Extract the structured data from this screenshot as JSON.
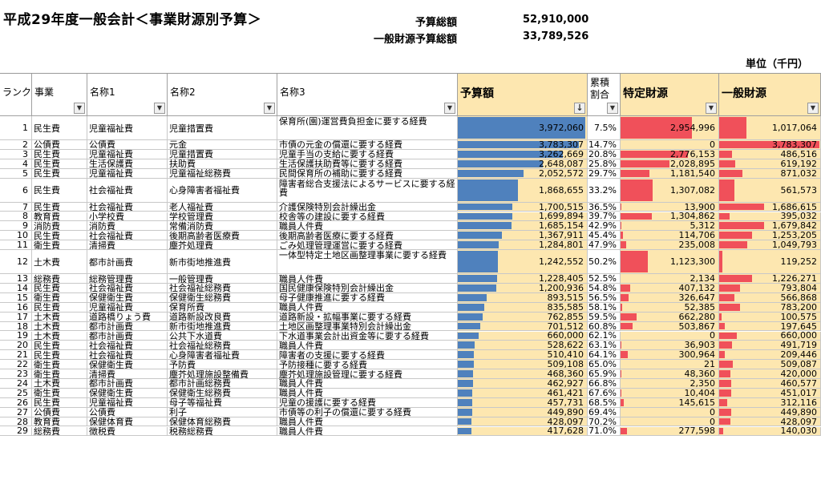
{
  "title": "平成29年度一般会計＜事業財源別予算＞",
  "summary": [
    {
      "label": "予算総額",
      "value": "52,910,000"
    },
    {
      "label": "一般財源予算総額",
      "value": "33,789,526"
    }
  ],
  "unit": "単位（千円）",
  "columns": [
    "ランク",
    "事業",
    "名称1",
    "名称2",
    "名称3",
    "予算額",
    "累積割合",
    "特定財源",
    "一般財源"
  ],
  "sort_indicator": "↓",
  "colors": {
    "budget_bar": "#4f81bd",
    "fund_bar": "#f0505a",
    "highlight_fill": "#fde7b0"
  },
  "rows": [
    {
      "rank": "1",
      "cat": "民生費",
      "n1": "児童福祉費",
      "n2": "児童措置費",
      "n3": "保育所(園)運営費負担金に要する経費",
      "budget": "3,972,060",
      "cum": "7.5%",
      "tok": "2,954,996",
      "ippan": "1,017,064",
      "b": 3972060,
      "tk": 2954996,
      "ip": 1017064
    },
    {
      "rank": "2",
      "cat": "公債費",
      "n1": "公債費",
      "n2": "元金",
      "n3": "市債の元金の償還に要する経費",
      "budget": "3,783,307",
      "cum": "14.7%",
      "tok": "0",
      "ippan": "3,783,307",
      "b": 3783307,
      "tk": 0,
      "ip": 3783307
    },
    {
      "rank": "3",
      "cat": "民生費",
      "n1": "児童福祉費",
      "n2": "児童措置費",
      "n3": "児童手当の支給に要する経費",
      "budget": "3,262,669",
      "cum": "20.8%",
      "tok": "2,776,153",
      "ippan": "486,516",
      "b": 3262669,
      "tk": 2776153,
      "ip": 486516
    },
    {
      "rank": "4",
      "cat": "民生費",
      "n1": "生活保護費",
      "n2": "扶助費",
      "n3": "生活保護扶助費等に要する経費",
      "budget": "2,648,087",
      "cum": "25.8%",
      "tok": "2,028,895",
      "ippan": "619,192",
      "b": 2648087,
      "tk": 2028895,
      "ip": 619192
    },
    {
      "rank": "5",
      "cat": "民生費",
      "n1": "児童福祉費",
      "n2": "児童福祉総務費",
      "n3": "民間保育所の補助に要する経費",
      "budget": "2,052,572",
      "cum": "29.7%",
      "tok": "1,181,540",
      "ippan": "871,032",
      "b": 2052572,
      "tk": 1181540,
      "ip": 871032
    },
    {
      "rank": "6",
      "cat": "民生費",
      "n1": "社会福祉費",
      "n2": "心身障害者福祉費",
      "n3": "障害者総合支援法によるサービスに要する経費",
      "budget": "1,868,655",
      "cum": "33.2%",
      "tok": "1,307,082",
      "ippan": "561,573",
      "b": 1868655,
      "tk": 1307082,
      "ip": 561573
    },
    {
      "rank": "7",
      "cat": "民生費",
      "n1": "社会福祉費",
      "n2": "老人福祉費",
      "n3": "介護保険特別会計繰出金",
      "budget": "1,700,515",
      "cum": "36.5%",
      "tok": "13,900",
      "ippan": "1,686,615",
      "b": 1700515,
      "tk": 13900,
      "ip": 1686615
    },
    {
      "rank": "8",
      "cat": "教育費",
      "n1": "小学校費",
      "n2": "学校管理費",
      "n3": "校舎等の建設に要する経費",
      "budget": "1,699,894",
      "cum": "39.7%",
      "tok": "1,304,862",
      "ippan": "395,032",
      "b": 1699894,
      "tk": 1304862,
      "ip": 395032
    },
    {
      "rank": "9",
      "cat": "消防費",
      "n1": "消防費",
      "n2": "常備消防費",
      "n3": "職員人件費",
      "budget": "1,685,154",
      "cum": "42.9%",
      "tok": "5,312",
      "ippan": "1,679,842",
      "b": 1685154,
      "tk": 5312,
      "ip": 1679842
    },
    {
      "rank": "10",
      "cat": "民生費",
      "n1": "社会福祉費",
      "n2": "後期高齢者医療費",
      "n3": "後期高齢者医療に要する経費",
      "budget": "1,367,911",
      "cum": "45.4%",
      "tok": "114,706",
      "ippan": "1,253,205",
      "b": 1367911,
      "tk": 114706,
      "ip": 1253205
    },
    {
      "rank": "11",
      "cat": "衛生費",
      "n1": "清掃費",
      "n2": "塵芥処理費",
      "n3": "ごみ処理管理運営に要する経費",
      "budget": "1,284,801",
      "cum": "47.9%",
      "tok": "235,008",
      "ippan": "1,049,793",
      "b": 1284801,
      "tk": 235008,
      "ip": 1049793
    },
    {
      "rank": "12",
      "cat": "土木費",
      "n1": "都市計画費",
      "n2": "新市街地推進費",
      "n3": "一体型特定土地区画整理事業に要する経費",
      "budget": "1,242,552",
      "cum": "50.2%",
      "tok": "1,123,300",
      "ippan": "119,252",
      "b": 1242552,
      "tk": 1123300,
      "ip": 119252
    },
    {
      "rank": "13",
      "cat": "総務費",
      "n1": "総務管理費",
      "n2": "一般管理費",
      "n3": "職員人件費",
      "budget": "1,228,405",
      "cum": "52.5%",
      "tok": "2,134",
      "ippan": "1,226,271",
      "b": 1228405,
      "tk": 2134,
      "ip": 1226271
    },
    {
      "rank": "14",
      "cat": "民生費",
      "n1": "社会福祉費",
      "n2": "社会福祉総務費",
      "n3": "国民健康保険特別会計繰出金",
      "budget": "1,200,936",
      "cum": "54.8%",
      "tok": "407,132",
      "ippan": "793,804",
      "b": 1200936,
      "tk": 407132,
      "ip": 793804
    },
    {
      "rank": "15",
      "cat": "衛生費",
      "n1": "保健衛生費",
      "n2": "保健衛生総務費",
      "n3": "母子健康推進に要する経費",
      "budget": "893,515",
      "cum": "56.5%",
      "tok": "326,647",
      "ippan": "566,868",
      "b": 893515,
      "tk": 326647,
      "ip": 566868
    },
    {
      "rank": "16",
      "cat": "民生費",
      "n1": "児童福祉費",
      "n2": "保育所費",
      "n3": "職員人件費",
      "budget": "835,585",
      "cum": "58.1%",
      "tok": "52,385",
      "ippan": "783,200",
      "b": 835585,
      "tk": 52385,
      "ip": 783200
    },
    {
      "rank": "17",
      "cat": "土木費",
      "n1": "道路橋りょう費",
      "n2": "道路新設改良費",
      "n3": "道路新設・拡幅事業に要する経費",
      "budget": "762,855",
      "cum": "59.5%",
      "tok": "662,280",
      "ippan": "100,575",
      "b": 762855,
      "tk": 662280,
      "ip": 100575
    },
    {
      "rank": "18",
      "cat": "土木費",
      "n1": "都市計画費",
      "n2": "新市街地推進費",
      "n3": "土地区画整理事業特別会計繰出金",
      "budget": "701,512",
      "cum": "60.8%",
      "tok": "503,867",
      "ippan": "197,645",
      "b": 701512,
      "tk": 503867,
      "ip": 197645
    },
    {
      "rank": "19",
      "cat": "土木費",
      "n1": "都市計画費",
      "n2": "公共下水道費",
      "n3": "下水道事業会計出資金等に要する経費",
      "budget": "660,000",
      "cum": "62.1%",
      "tok": "0",
      "ippan": "660,000",
      "b": 660000,
      "tk": 0,
      "ip": 660000
    },
    {
      "rank": "20",
      "cat": "民生費",
      "n1": "社会福祉費",
      "n2": "社会福祉総務費",
      "n3": "職員人件費",
      "budget": "528,622",
      "cum": "63.1%",
      "tok": "36,903",
      "ippan": "491,719",
      "b": 528622,
      "tk": 36903,
      "ip": 491719
    },
    {
      "rank": "21",
      "cat": "民生費",
      "n1": "社会福祉費",
      "n2": "心身障害者福祉費",
      "n3": "障害者の支援に要する経費",
      "budget": "510,410",
      "cum": "64.1%",
      "tok": "300,964",
      "ippan": "209,446",
      "b": 510410,
      "tk": 300964,
      "ip": 209446
    },
    {
      "rank": "22",
      "cat": "衛生費",
      "n1": "保健衛生費",
      "n2": "予防費",
      "n3": "予防接種に要する経費",
      "budget": "509,108",
      "cum": "65.0%",
      "tok": "21",
      "ippan": "509,087",
      "b": 509108,
      "tk": 21,
      "ip": 509087
    },
    {
      "rank": "23",
      "cat": "衛生費",
      "n1": "清掃費",
      "n2": "塵芥処理施設整備費",
      "n3": "塵芥処理施設管理に要する経費",
      "budget": "468,360",
      "cum": "65.9%",
      "tok": "48,360",
      "ippan": "420,000",
      "b": 468360,
      "tk": 48360,
      "ip": 420000
    },
    {
      "rank": "24",
      "cat": "土木費",
      "n1": "都市計画費",
      "n2": "都市計画総務費",
      "n3": "職員人件費",
      "budget": "462,927",
      "cum": "66.8%",
      "tok": "2,350",
      "ippan": "460,577",
      "b": 462927,
      "tk": 2350,
      "ip": 460577
    },
    {
      "rank": "25",
      "cat": "衛生費",
      "n1": "保健衛生費",
      "n2": "保健衛生総務費",
      "n3": "職員人件費",
      "budget": "461,421",
      "cum": "67.6%",
      "tok": "10,404",
      "ippan": "451,017",
      "b": 461421,
      "tk": 10404,
      "ip": 451017
    },
    {
      "rank": "26",
      "cat": "民生費",
      "n1": "児童福祉費",
      "n2": "母子等福祉費",
      "n3": "児童の援護に要する経費",
      "budget": "457,731",
      "cum": "68.5%",
      "tok": "145,615",
      "ippan": "312,116",
      "b": 457731,
      "tk": 145615,
      "ip": 312116
    },
    {
      "rank": "27",
      "cat": "公債費",
      "n1": "公債費",
      "n2": "利子",
      "n3": "市債等の利子の償還に要する経費",
      "budget": "449,890",
      "cum": "69.4%",
      "tok": "0",
      "ippan": "449,890",
      "b": 449890,
      "tk": 0,
      "ip": 449890
    },
    {
      "rank": "28",
      "cat": "教育費",
      "n1": "保健体育費",
      "n2": "保健体育総務費",
      "n3": "職員人件費",
      "budget": "428,097",
      "cum": "70.2%",
      "tok": "0",
      "ippan": "428,097",
      "b": 428097,
      "tk": 0,
      "ip": 428097
    },
    {
      "rank": "29",
      "cat": "総務費",
      "n1": "徴税費",
      "n2": "税務総務費",
      "n3": "職員人件費",
      "budget": "417,628",
      "cum": "71.0%",
      "tok": "277,598",
      "ippan": "140,030",
      "b": 417628,
      "tk": 277598,
      "ip": 140030
    }
  ]
}
